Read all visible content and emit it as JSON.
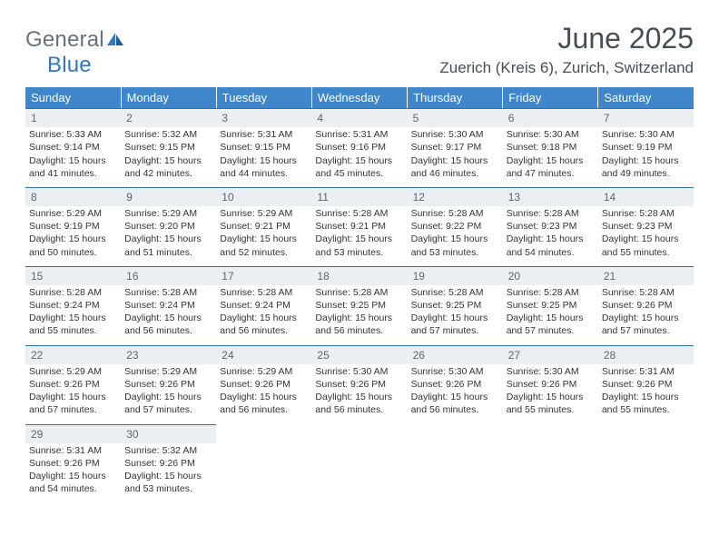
{
  "brand": {
    "name_part1": "General",
    "name_part2": "Blue",
    "text_color": "#67727b",
    "accent_color": "#2f78c2"
  },
  "title": "June 2025",
  "location": "Zuerich (Kreis 6), Zurich, Switzerland",
  "style": {
    "header_bg": "#3f86ca",
    "header_text": "#ffffff",
    "daynum_bg": "#eceff1",
    "daynum_border": "#2f6faf",
    "body_text": "#333333",
    "title_color": "#474e55",
    "title_fontsize": 32,
    "location_fontsize": 17,
    "dayhead_fontsize": 13,
    "cell_fontsize": 10.5
  },
  "day_names": [
    "Sunday",
    "Monday",
    "Tuesday",
    "Wednesday",
    "Thursday",
    "Friday",
    "Saturday"
  ],
  "weeks": [
    [
      {
        "n": "1",
        "sunrise": "5:33 AM",
        "sunset": "9:14 PM",
        "daylight": "15 hours and 41 minutes."
      },
      {
        "n": "2",
        "sunrise": "5:32 AM",
        "sunset": "9:15 PM",
        "daylight": "15 hours and 42 minutes."
      },
      {
        "n": "3",
        "sunrise": "5:31 AM",
        "sunset": "9:15 PM",
        "daylight": "15 hours and 44 minutes."
      },
      {
        "n": "4",
        "sunrise": "5:31 AM",
        "sunset": "9:16 PM",
        "daylight": "15 hours and 45 minutes."
      },
      {
        "n": "5",
        "sunrise": "5:30 AM",
        "sunset": "9:17 PM",
        "daylight": "15 hours and 46 minutes."
      },
      {
        "n": "6",
        "sunrise": "5:30 AM",
        "sunset": "9:18 PM",
        "daylight": "15 hours and 47 minutes."
      },
      {
        "n": "7",
        "sunrise": "5:30 AM",
        "sunset": "9:19 PM",
        "daylight": "15 hours and 49 minutes."
      }
    ],
    [
      {
        "n": "8",
        "sunrise": "5:29 AM",
        "sunset": "9:19 PM",
        "daylight": "15 hours and 50 minutes."
      },
      {
        "n": "9",
        "sunrise": "5:29 AM",
        "sunset": "9:20 PM",
        "daylight": "15 hours and 51 minutes."
      },
      {
        "n": "10",
        "sunrise": "5:29 AM",
        "sunset": "9:21 PM",
        "daylight": "15 hours and 52 minutes."
      },
      {
        "n": "11",
        "sunrise": "5:28 AM",
        "sunset": "9:21 PM",
        "daylight": "15 hours and 53 minutes."
      },
      {
        "n": "12",
        "sunrise": "5:28 AM",
        "sunset": "9:22 PM",
        "daylight": "15 hours and 53 minutes."
      },
      {
        "n": "13",
        "sunrise": "5:28 AM",
        "sunset": "9:23 PM",
        "daylight": "15 hours and 54 minutes."
      },
      {
        "n": "14",
        "sunrise": "5:28 AM",
        "sunset": "9:23 PM",
        "daylight": "15 hours and 55 minutes."
      }
    ],
    [
      {
        "n": "15",
        "sunrise": "5:28 AM",
        "sunset": "9:24 PM",
        "daylight": "15 hours and 55 minutes."
      },
      {
        "n": "16",
        "sunrise": "5:28 AM",
        "sunset": "9:24 PM",
        "daylight": "15 hours and 56 minutes."
      },
      {
        "n": "17",
        "sunrise": "5:28 AM",
        "sunset": "9:24 PM",
        "daylight": "15 hours and 56 minutes."
      },
      {
        "n": "18",
        "sunrise": "5:28 AM",
        "sunset": "9:25 PM",
        "daylight": "15 hours and 56 minutes."
      },
      {
        "n": "19",
        "sunrise": "5:28 AM",
        "sunset": "9:25 PM",
        "daylight": "15 hours and 57 minutes."
      },
      {
        "n": "20",
        "sunrise": "5:28 AM",
        "sunset": "9:25 PM",
        "daylight": "15 hours and 57 minutes."
      },
      {
        "n": "21",
        "sunrise": "5:28 AM",
        "sunset": "9:26 PM",
        "daylight": "15 hours and 57 minutes."
      }
    ],
    [
      {
        "n": "22",
        "sunrise": "5:29 AM",
        "sunset": "9:26 PM",
        "daylight": "15 hours and 57 minutes."
      },
      {
        "n": "23",
        "sunrise": "5:29 AM",
        "sunset": "9:26 PM",
        "daylight": "15 hours and 57 minutes."
      },
      {
        "n": "24",
        "sunrise": "5:29 AM",
        "sunset": "9:26 PM",
        "daylight": "15 hours and 56 minutes."
      },
      {
        "n": "25",
        "sunrise": "5:30 AM",
        "sunset": "9:26 PM",
        "daylight": "15 hours and 56 minutes."
      },
      {
        "n": "26",
        "sunrise": "5:30 AM",
        "sunset": "9:26 PM",
        "daylight": "15 hours and 56 minutes."
      },
      {
        "n": "27",
        "sunrise": "5:30 AM",
        "sunset": "9:26 PM",
        "daylight": "15 hours and 55 minutes."
      },
      {
        "n": "28",
        "sunrise": "5:31 AM",
        "sunset": "9:26 PM",
        "daylight": "15 hours and 55 minutes."
      }
    ],
    [
      {
        "n": "29",
        "sunrise": "5:31 AM",
        "sunset": "9:26 PM",
        "daylight": "15 hours and 54 minutes."
      },
      {
        "n": "30",
        "sunrise": "5:32 AM",
        "sunset": "9:26 PM",
        "daylight": "15 hours and 53 minutes."
      },
      null,
      null,
      null,
      null,
      null
    ]
  ],
  "labels": {
    "sunrise": "Sunrise:",
    "sunset": "Sunset:",
    "daylight": "Daylight:"
  }
}
